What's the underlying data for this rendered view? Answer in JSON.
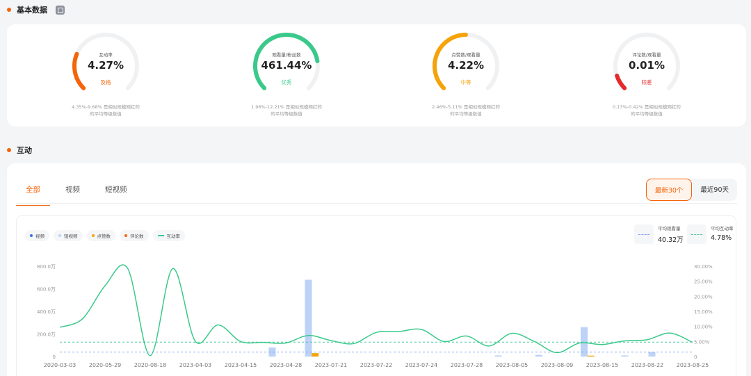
{
  "basic": {
    "title": "基本数据",
    "gauges": [
      {
        "label": "互动率",
        "value": "4.27%",
        "grade": "及格",
        "color": "#f5640a",
        "fill": 0.25,
        "desc1": "4.35%-9.68% 是相似规模网红的",
        "desc2": "的平均等级数值"
      },
      {
        "label": "观看量/粉丝数",
        "value": "461.44%",
        "grade": "优秀",
        "color": "#3ac98a",
        "fill": 0.8,
        "desc1": "1.96%-12.21% 是相似规模网红的",
        "desc2": "的平均等级数值"
      },
      {
        "label": "点赞数/观看量",
        "value": "4.22%",
        "grade": "中等",
        "color": "#f5a30a",
        "fill": 0.5,
        "desc1": "2.46%-5.11% 是相似规模网红的",
        "desc2": "的平均等级数值"
      },
      {
        "label": "评论数/观看量",
        "value": "0.01%",
        "grade": "较差",
        "color": "#e32b2b",
        "fill": 0.1,
        "desc1": "0.13%-0.42% 是相似规模网红的",
        "desc2": "的平均等级数值"
      }
    ]
  },
  "interaction": {
    "title": "互动",
    "tabs": [
      "全部",
      "视频",
      "短视频"
    ],
    "ranges": [
      "最新30个",
      "最近90天"
    ],
    "legend": [
      {
        "label": "视频",
        "color": "#3b6fe0",
        "kind": "dot"
      },
      {
        "label": "短视频",
        "color": "#bcd3f7",
        "kind": "dot"
      },
      {
        "label": "点赞数",
        "color": "#f5a30a",
        "kind": "dot"
      },
      {
        "label": "评论数",
        "color": "#f5640a",
        "kind": "dot"
      },
      {
        "label": "互动率",
        "color": "#3ac98a",
        "kind": "line"
      }
    ],
    "avg_views_label": "平均观看量",
    "avg_views_value": "40.32万",
    "avg_rate_label": "平均互动率",
    "avg_rate_value": "4.78%"
  },
  "chart_data": {
    "type": "bar",
    "categories": [
      "2020-03-03",
      "2020-05-29",
      "2020-08-18",
      "2023-04-03",
      "2023-04-15",
      "2023-04-28",
      "2023-07-21",
      "2023-07-22",
      "2023-07-24",
      "2023-07-28",
      "2023-08-05",
      "2023-08-09",
      "2023-08-15",
      "2023-08-22",
      "2023-08-25"
    ],
    "y_left_ticks": [
      "0",
      "200.0万",
      "400.0万",
      "600.0万",
      "800.0万"
    ],
    "y_right_ticks": [
      "0",
      "5.00%",
      "10.00%",
      "15.00%",
      "20.00%",
      "25.00%",
      "30.00%"
    ],
    "ylim_left": [
      0,
      800
    ],
    "ylim_right": [
      0,
      30
    ],
    "bar_x": [
      4.7,
      5.5,
      9.7,
      10.6,
      11.6,
      12.5,
      13.1
    ],
    "bar_values": [
      80,
      680,
      10,
      15,
      260,
      10,
      40
    ],
    "like_bar_x": [
      5.65,
      11.75
    ],
    "like_bar_values": [
      30,
      8
    ],
    "rate_x": [
      0,
      0.5,
      1,
      1.5,
      2,
      2.5,
      3,
      3.5,
      4,
      4.5,
      5,
      5.5,
      6,
      6.5,
      7,
      7.5,
      8,
      8.5,
      9,
      9.5,
      10,
      10.5,
      11,
      11.5,
      12,
      12.5,
      13,
      13.5,
      14
    ],
    "rate_values": [
      9.7,
      12.5,
      23.5,
      29.3,
      0.3,
      29.2,
      5,
      10.5,
      5,
      4.7,
      4.5,
      7,
      5.3,
      4.3,
      8,
      8.3,
      9,
      5,
      6.8,
      3.5,
      7.7,
      5,
      1.3,
      4.5,
      4,
      5.2,
      5.6,
      7.8,
      4.7
    ],
    "avg_views": 40.32,
    "avg_rate": 4.78
  }
}
